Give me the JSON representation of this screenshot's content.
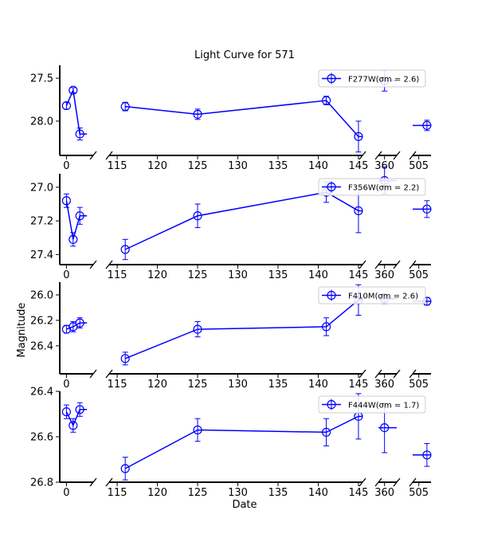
{
  "chart_data": {
    "type": "line",
    "title": "Light Curve for 571",
    "xlabel": "Date",
    "ylabel": "Magnitude",
    "y_inverted": true,
    "broken_x_axis": true,
    "x_segments": [
      {
        "xlim": [
          -1,
          4
        ],
        "ticks": [
          0
        ],
        "tick_labels": [
          "0"
        ]
      },
      {
        "xlim": [
          114,
          145.5
        ],
        "ticks": [
          115,
          120,
          125,
          130,
          135,
          140,
          145
        ],
        "tick_labels": [
          "115",
          "120",
          "125",
          "130",
          "135",
          "140",
          "145"
        ]
      },
      {
        "xlim": [
          359,
          362
        ],
        "ticks": [
          360
        ],
        "tick_labels": [
          "360"
        ]
      },
      {
        "xlim": [
          503.5,
          508
        ],
        "ticks": [
          505
        ],
        "tick_labels": [
          "505"
        ]
      }
    ],
    "color": "#0000ff",
    "legend_position": "upper right",
    "panels": [
      {
        "filter": "F277W",
        "legend_label": "F277W(σm = 2.6)",
        "ylim": [
          28.4,
          27.35
        ],
        "yticks": [
          27.5,
          28.0
        ],
        "ytick_labels": [
          "27.5",
          "28.0"
        ],
        "points": [
          {
            "x": 0,
            "y": 27.82,
            "err": 0.04
          },
          {
            "x": 1,
            "y": 27.64,
            "err": 0.03
          },
          {
            "x": 2,
            "y": 28.15,
            "err": 0.07
          },
          {
            "x": 116,
            "y": 27.83,
            "err": 0.05
          },
          {
            "x": 125,
            "y": 27.92,
            "err": 0.06
          },
          {
            "x": 141,
            "y": 27.76,
            "err": 0.05
          },
          {
            "x": 145,
            "y": 28.18,
            "err": 0.18
          },
          {
            "x": 360,
            "y": 27.53,
            "err": 0.12
          },
          {
            "x": 507,
            "y": 28.05,
            "err": 0.06
          }
        ]
      },
      {
        "filter": "F356W",
        "legend_label": "F356W(σm = 2.2)",
        "ylim": [
          27.46,
          26.92
        ],
        "yticks": [
          27.0,
          27.2,
          27.4
        ],
        "ytick_labels": [
          "27.0",
          "27.2",
          "27.4"
        ],
        "points": [
          {
            "x": 0,
            "y": 27.08,
            "err": 0.04
          },
          {
            "x": 1,
            "y": 27.31,
            "err": 0.04
          },
          {
            "x": 2,
            "y": 27.17,
            "err": 0.05
          },
          {
            "x": 116,
            "y": 27.37,
            "err": 0.06
          },
          {
            "x": 125,
            "y": 27.17,
            "err": 0.07
          },
          {
            "x": 141,
            "y": 27.03,
            "err": 0.06
          },
          {
            "x": 145,
            "y": 27.14,
            "err": 0.13
          },
          {
            "x": 360,
            "y": 26.96,
            "err": 0.08
          },
          {
            "x": 507,
            "y": 27.13,
            "err": 0.05
          }
        ]
      },
      {
        "filter": "F410M",
        "legend_label": "F410M(σm = 2.6)",
        "ylim": [
          26.62,
          25.9
        ],
        "yticks": [
          26.0,
          26.2,
          26.4
        ],
        "ytick_labels": [
          "26.0",
          "26.2",
          "26.4"
        ],
        "points": [
          {
            "x": 0,
            "y": 26.27,
            "err": 0.03
          },
          {
            "x": 1,
            "y": 26.25,
            "err": 0.04
          },
          {
            "x": 2,
            "y": 26.22,
            "err": 0.04
          },
          {
            "x": 116,
            "y": 26.5,
            "err": 0.05
          },
          {
            "x": 125,
            "y": 26.27,
            "err": 0.06
          },
          {
            "x": 141,
            "y": 26.25,
            "err": 0.07
          },
          {
            "x": 145,
            "y": 26.04,
            "err": 0.12
          },
          {
            "x": 360,
            "y": 26.03,
            "err": 0.04
          },
          {
            "x": 507,
            "y": 26.05,
            "err": 0.03
          }
        ]
      },
      {
        "filter": "F444W",
        "legend_label": "F444W(σm = 1.7)",
        "ylim": [
          26.8,
          26.4
        ],
        "yticks": [
          26.4,
          26.6,
          26.8
        ],
        "ytick_labels": [
          "26.4",
          "26.6",
          "26.8"
        ],
        "points": [
          {
            "x": 0,
            "y": 26.49,
            "err": 0.03
          },
          {
            "x": 1,
            "y": 26.55,
            "err": 0.03
          },
          {
            "x": 2,
            "y": 26.48,
            "err": 0.03
          },
          {
            "x": 116,
            "y": 26.74,
            "err": 0.05
          },
          {
            "x": 125,
            "y": 26.57,
            "err": 0.05
          },
          {
            "x": 141,
            "y": 26.58,
            "err": 0.06
          },
          {
            "x": 145,
            "y": 26.51,
            "err": 0.1
          },
          {
            "x": 360,
            "y": 26.56,
            "err": 0.11
          },
          {
            "x": 507,
            "y": 26.68,
            "err": 0.05
          }
        ]
      }
    ]
  }
}
